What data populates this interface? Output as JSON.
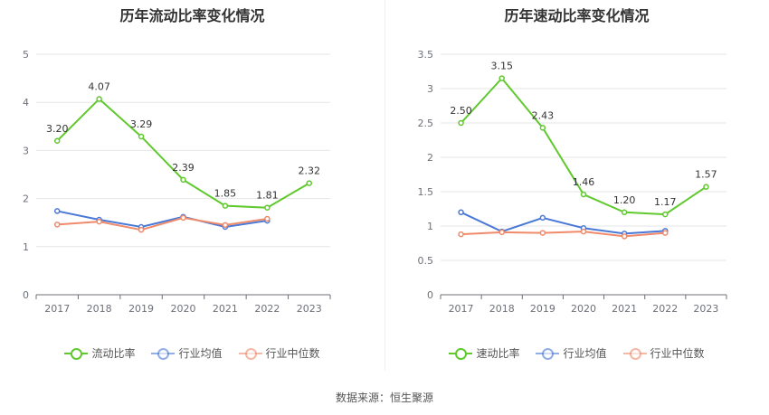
{
  "source": "数据来源：恒生聚源",
  "colors": {
    "main": "#5fc92e",
    "avg": "#4a78d6",
    "median": "#f08a6a",
    "grid": "#e6e6e6",
    "axis": "#6e7079"
  },
  "chart_data": [
    {
      "type": "line",
      "title": "历年流动比率变化情况",
      "categories": [
        "2017",
        "2018",
        "2019",
        "2020",
        "2021",
        "2022",
        "2023"
      ],
      "ylim": [
        0,
        5
      ],
      "yticks": [
        "0",
        "1",
        "2",
        "3",
        "4",
        "5"
      ],
      "grid": true,
      "legend_position": "bottom",
      "series": [
        {
          "name": "流动比率",
          "color": "#5fc92e",
          "values": [
            3.2,
            4.07,
            3.29,
            2.39,
            1.85,
            1.81,
            2.32
          ],
          "labels": [
            "3.20",
            "4.07",
            "3.29",
            "2.39",
            "1.85",
            "1.81",
            "2.32"
          ]
        },
        {
          "name": "行业均值",
          "color": "#4a78d6",
          "values": [
            1.74,
            1.56,
            1.41,
            1.62,
            1.41,
            1.54,
            null
          ]
        },
        {
          "name": "行业中位数",
          "color": "#f08a6a",
          "values": [
            1.46,
            1.52,
            1.35,
            1.6,
            1.45,
            1.58,
            null
          ]
        }
      ]
    },
    {
      "type": "line",
      "title": "历年速动比率变化情况",
      "categories": [
        "2017",
        "2018",
        "2019",
        "2020",
        "2021",
        "2022",
        "2023"
      ],
      "ylim": [
        0,
        3.5
      ],
      "yticks": [
        "0",
        "0.5",
        "1",
        "1.5",
        "2",
        "2.5",
        "3",
        "3.5"
      ],
      "grid": true,
      "legend_position": "bottom",
      "series": [
        {
          "name": "速动比率",
          "color": "#5fc92e",
          "values": [
            2.5,
            3.15,
            2.43,
            1.46,
            1.2,
            1.17,
            1.57
          ],
          "labels": [
            "2.50",
            "3.15",
            "2.43",
            "1.46",
            "1.20",
            "1.17",
            "1.57"
          ]
        },
        {
          "name": "行业均值",
          "color": "#4a78d6",
          "values": [
            1.2,
            0.92,
            1.12,
            0.97,
            0.89,
            0.93,
            null
          ]
        },
        {
          "name": "行业中位数",
          "color": "#f08a6a",
          "values": [
            0.88,
            0.91,
            0.9,
            0.92,
            0.85,
            0.9,
            null
          ]
        }
      ]
    }
  ]
}
